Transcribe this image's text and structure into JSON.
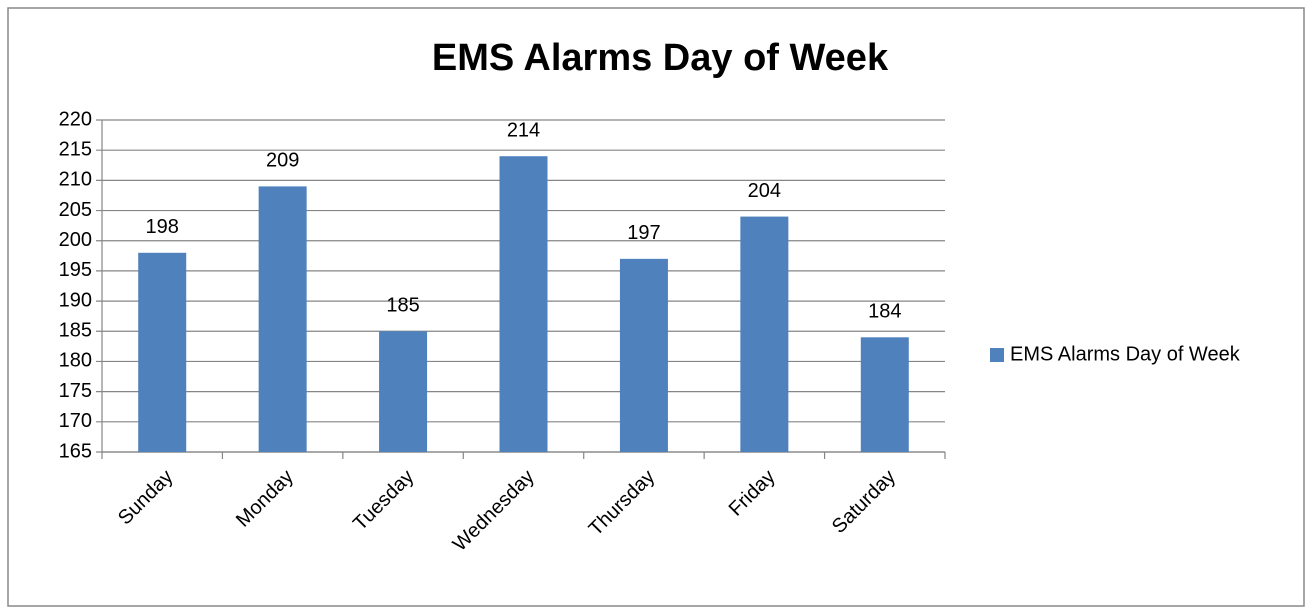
{
  "chart_data": {
    "type": "bar",
    "title": "EMS Alarms Day of Week",
    "categories": [
      "Sunday",
      "Monday",
      "Tuesday",
      "Wednesday",
      "Thursday",
      "Friday",
      "Saturday"
    ],
    "series": [
      {
        "name": "EMS Alarms Day of Week",
        "color": "#4f81bd",
        "values": [
          198,
          209,
          185,
          214,
          197,
          204,
          184
        ]
      }
    ],
    "ylim": [
      165,
      220
    ],
    "yticks": [
      165,
      170,
      175,
      180,
      185,
      190,
      195,
      200,
      205,
      210,
      215,
      220
    ],
    "grid": true,
    "legend": "right"
  }
}
